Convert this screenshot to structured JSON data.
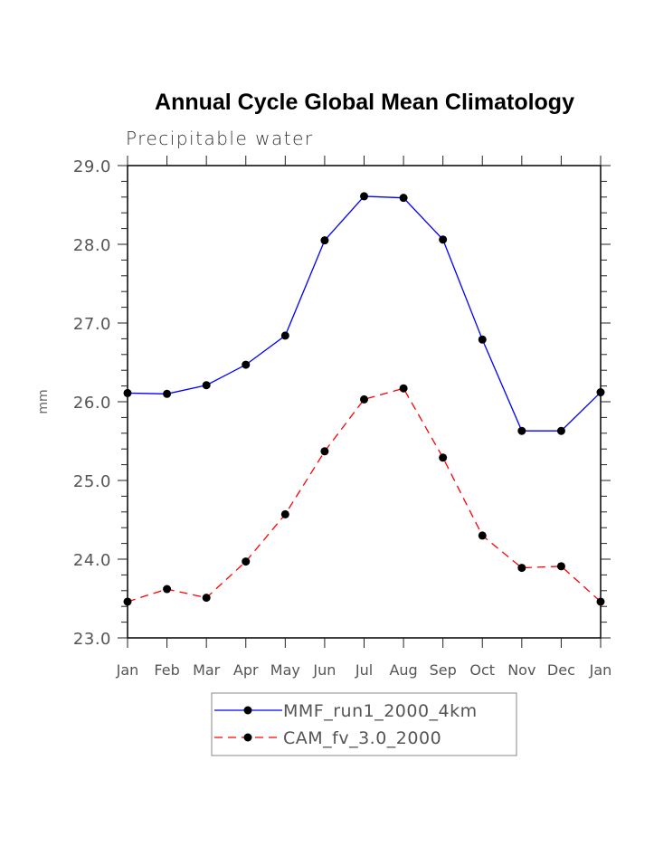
{
  "chart_data": {
    "type": "line",
    "title": "Annual Cycle Global Mean Climatology",
    "subtitle": "Precipitable water",
    "xlabel": "",
    "ylabel": "mm",
    "ylim": [
      23.0,
      29.0
    ],
    "y_major_ticks": [
      23.0,
      24.0,
      25.0,
      26.0,
      27.0,
      28.0,
      29.0
    ],
    "y_tick_labels": [
      "23.0",
      "24.0",
      "25.0",
      "26.0",
      "27.0",
      "28.0",
      "29.0"
    ],
    "y_minor_step": 0.2,
    "categories": [
      "Jan",
      "Feb",
      "Mar",
      "Apr",
      "May",
      "Jun",
      "Jul",
      "Aug",
      "Sep",
      "Oct",
      "Nov",
      "Dec",
      "Jan"
    ],
    "grid": false,
    "legend_position": "bottom-center",
    "series": [
      {
        "name": "MMF_run1_2000_4km",
        "color": "#0000ff",
        "line_style": "solid",
        "marker": "filled-circle",
        "values": [
          26.11,
          26.1,
          26.21,
          26.47,
          26.84,
          28.05,
          28.61,
          28.59,
          28.06,
          26.79,
          25.63,
          25.63,
          26.12
        ]
      },
      {
        "name": "CAM_fv_3.0_2000",
        "color": "#ff0000",
        "line_style": "dashed",
        "marker": "filled-circle",
        "values": [
          23.46,
          23.62,
          23.51,
          23.97,
          24.57,
          25.37,
          26.03,
          26.17,
          25.29,
          24.3,
          23.89,
          23.91,
          23.46
        ]
      }
    ]
  }
}
